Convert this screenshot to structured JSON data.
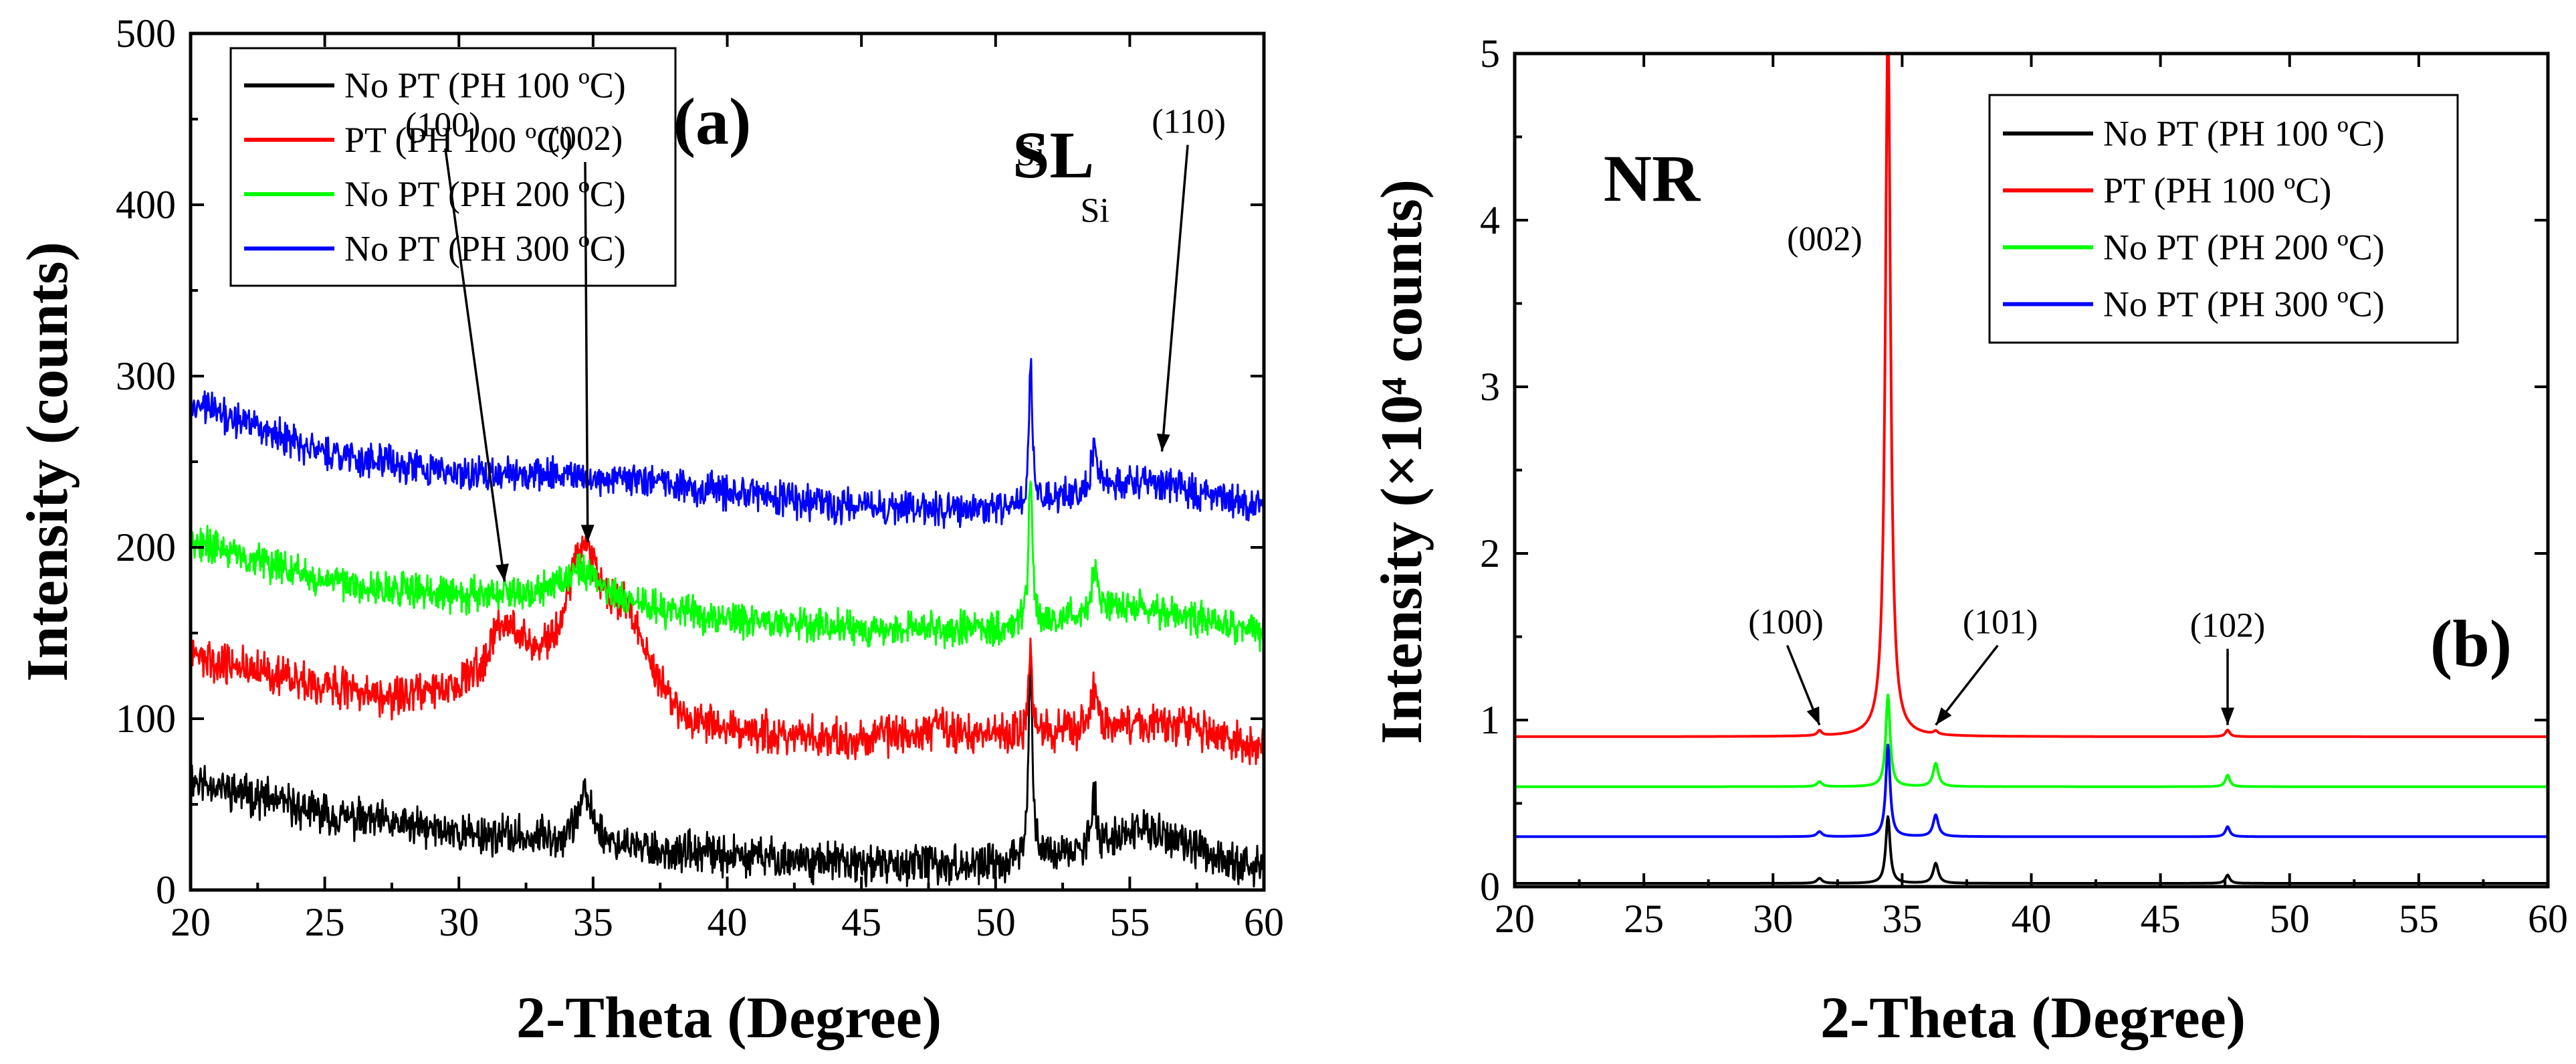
{
  "chart_data": [
    {
      "type": "line",
      "panel_label": "(a)",
      "sample_label": "SL",
      "xlabel": "2-Theta (Degree)",
      "ylabel": "Intensity (counts)",
      "xlim": [
        20,
        60
      ],
      "ylim": [
        0,
        500
      ],
      "xticks": [
        20,
        25,
        30,
        35,
        40,
        45,
        50,
        55,
        60
      ],
      "yticks": [
        0,
        100,
        200,
        300,
        400,
        500
      ],
      "legend_position": "top-left",
      "series": [
        {
          "name": "No PT (PH 100 ºC)",
          "color": "#000000",
          "noise": 14,
          "points": [
            [
              20,
              65
            ],
            [
              25,
              44
            ],
            [
              30,
              33
            ],
            [
              33,
              30
            ],
            [
              38,
              22
            ],
            [
              45,
              15
            ],
            [
              50,
              14
            ],
            [
              55,
              26
            ],
            [
              57,
              24
            ],
            [
              60,
              12
            ]
          ],
          "peaks": [
            [
              34.7,
              28,
              0.35
            ],
            [
              51.3,
              120,
              0.08
            ],
            [
              53.7,
              28,
              0.12
            ],
            [
              55.5,
              10,
              1.0
            ]
          ]
        },
        {
          "name": "PT (PH 100 ºC)",
          "color": "#ff0000",
          "noise": 14,
          "points": [
            [
              20,
              137
            ],
            [
              25,
              118
            ],
            [
              28,
              110
            ],
            [
              30,
              112
            ],
            [
              33,
              120
            ],
            [
              35,
              160
            ],
            [
              37,
              120
            ],
            [
              38.5,
              95
            ],
            [
              45,
              87
            ],
            [
              48,
              93
            ],
            [
              50,
              90
            ],
            [
              55,
              96
            ],
            [
              57,
              97
            ],
            [
              60,
              82
            ]
          ],
          "peaks": [
            [
              31.8,
              38,
              0.9
            ],
            [
              34.5,
              40,
              0.6
            ],
            [
              36.3,
              28,
              0.7
            ],
            [
              51.3,
              50,
              0.08
            ],
            [
              53.7,
              25,
              0.12
            ]
          ]
        },
        {
          "name": "No PT (PH 200 ºC)",
          "color": "#00ff00",
          "noise": 12,
          "points": [
            [
              20,
              205
            ],
            [
              25,
              180
            ],
            [
              30,
              172
            ],
            [
              34,
              175
            ],
            [
              35,
              175
            ],
            [
              37,
              165
            ],
            [
              40,
              158
            ],
            [
              45,
              153
            ],
            [
              50,
              152
            ],
            [
              55,
              165
            ],
            [
              57,
              160
            ],
            [
              60,
              150
            ]
          ],
          "peaks": [
            [
              34.5,
              12,
              0.5
            ],
            [
              51.3,
              90,
              0.08
            ],
            [
              53.7,
              28,
              0.12
            ]
          ]
        },
        {
          "name": "No PT (PH 300 ºC)",
          "color": "#0000ff",
          "noise": 12,
          "points": [
            [
              20,
              285
            ],
            [
              25,
              255
            ],
            [
              30,
              243
            ],
            [
              34,
              243
            ],
            [
              36,
              240
            ],
            [
              40,
              232
            ],
            [
              45,
              223
            ],
            [
              50,
              222
            ],
            [
              55,
              238
            ],
            [
              57,
              235
            ],
            [
              60,
              222
            ]
          ],
          "peaks": [
            [
              51.3,
              80,
              0.08
            ],
            [
              53.7,
              32,
              0.12
            ]
          ]
        }
      ],
      "annotations": [
        {
          "text": "(100)",
          "x": 29.4,
          "y": 440,
          "target_x": 31.7,
          "target_y": 180
        },
        {
          "text": "(002)",
          "x": 34.7,
          "y": 432,
          "target_x": 34.8,
          "target_y": 203
        },
        {
          "text": "Si",
          "x": 51.3,
          "y": 423,
          "target_x": null,
          "target_y": null
        },
        {
          "text": "Si",
          "x": 53.7,
          "y": 390,
          "target_x": null,
          "target_y": null
        },
        {
          "text": "(110)",
          "x": 57.2,
          "y": 442,
          "target_x": 56.2,
          "target_y": 256
        }
      ]
    },
    {
      "type": "line",
      "panel_label": "(b)",
      "sample_label": "NR",
      "xlabel": "2-Theta (Degree)",
      "ylabel": "Intensity (×10⁴ counts)",
      "xlim": [
        20,
        60
      ],
      "ylim": [
        0,
        5
      ],
      "xticks": [
        20,
        25,
        30,
        35,
        40,
        45,
        50,
        55,
        60
      ],
      "yticks": [
        0,
        1,
        2,
        3,
        4,
        5
      ],
      "legend_position": "top-right",
      "series": [
        {
          "name": "No PT (PH 100 ºC)",
          "color": "#000000",
          "noise": 0,
          "points": [
            [
              20,
              0.02
            ],
            [
              60,
              0.02
            ]
          ],
          "peaks": [
            [
              31.8,
              0.03,
              0.12
            ],
            [
              34.45,
              0.4,
              0.1
            ],
            [
              36.3,
              0.12,
              0.12
            ],
            [
              47.6,
              0.05,
              0.1
            ]
          ]
        },
        {
          "name": "PT (PH 100 ºC)",
          "color": "#ff0000",
          "noise": 0,
          "points": [
            [
              20,
              0.9
            ],
            [
              60,
              0.9
            ]
          ],
          "peaks": [
            [
              31.8,
              0.03,
              0.1
            ],
            [
              34.45,
              4.3,
              0.12
            ],
            [
              36.3,
              0.02,
              0.1
            ],
            [
              47.6,
              0.04,
              0.1
            ]
          ]
        },
        {
          "name": "No PT (PH 200 ºC)",
          "color": "#00ff00",
          "noise": 0,
          "points": [
            [
              20,
              0.6
            ],
            [
              60,
              0.6
            ]
          ],
          "peaks": [
            [
              31.8,
              0.03,
              0.12
            ],
            [
              34.45,
              0.55,
              0.1
            ],
            [
              36.3,
              0.14,
              0.12
            ],
            [
              47.6,
              0.07,
              0.1
            ]
          ]
        },
        {
          "name": "No PT (PH 300 ºC)",
          "color": "#0000ff",
          "noise": 0,
          "points": [
            [
              20,
              0.3
            ],
            [
              60,
              0.3
            ]
          ],
          "peaks": [
            [
              31.8,
              0.03,
              0.12
            ],
            [
              34.45,
              0.55,
              0.1
            ],
            [
              36.3,
              0.13,
              0.12
            ],
            [
              47.6,
              0.06,
              0.1
            ]
          ]
        }
      ],
      "annotations": [
        {
          "text": "(002)",
          "x": 32.0,
          "y": 3.82,
          "target_x": null,
          "target_y": null
        },
        {
          "text": "(100)",
          "x": 30.5,
          "y": 1.52,
          "target_x": 31.8,
          "target_y": 0.97
        },
        {
          "text": "(101)",
          "x": 38.8,
          "y": 1.52,
          "target_x": 36.3,
          "target_y": 0.97
        },
        {
          "text": "(102)",
          "x": 47.6,
          "y": 1.5,
          "target_x": 47.6,
          "target_y": 0.97
        }
      ]
    }
  ]
}
